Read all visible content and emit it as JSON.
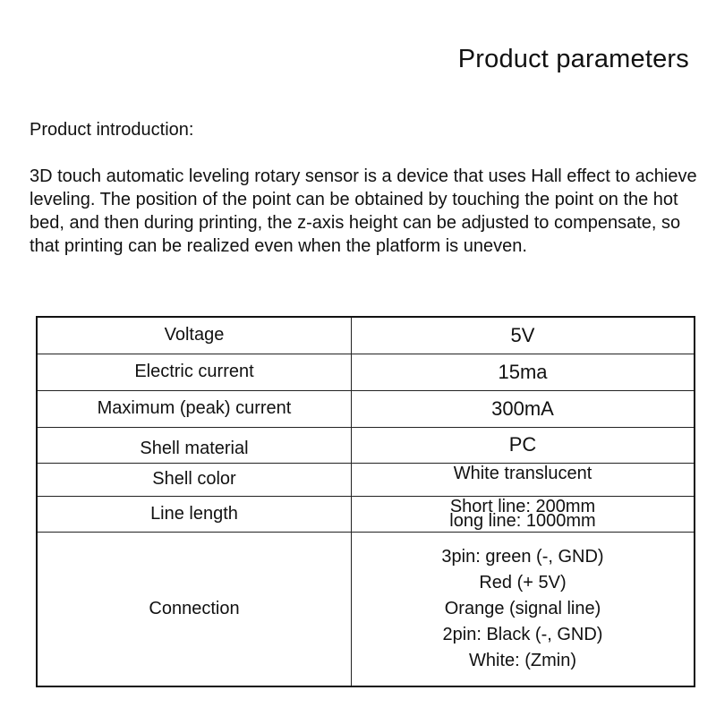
{
  "title": "Product parameters",
  "intro": {
    "heading": "Product introduction:",
    "body": "3D touch automatic leveling rotary sensor is a device that uses Hall effect to achieve leveling. The position of the point can be obtained by touching the point on the hot bed, and then during printing, the z-axis height can be adjusted to compensate, so that printing can be realized even when the platform is uneven."
  },
  "params": [
    {
      "key": "Voltage",
      "value": "5V"
    },
    {
      "key": "Electric current",
      "value": "15ma"
    },
    {
      "key": "Maximum (peak) current",
      "value": "300mA"
    },
    {
      "key": "Shell material",
      "value": "PC"
    },
    {
      "key": "Shell color",
      "value": "White translucent"
    },
    {
      "key": "Line length",
      "lines": [
        "Short line: 200mm",
        "long line: 1000mm"
      ]
    },
    {
      "key": "Connection",
      "lines": [
        "3pin: green (-, GND)",
        "Red (+ 5V)",
        "Orange (signal line)",
        "2pin: Black (-, GND)",
        "White: (Zmin)"
      ]
    }
  ]
}
